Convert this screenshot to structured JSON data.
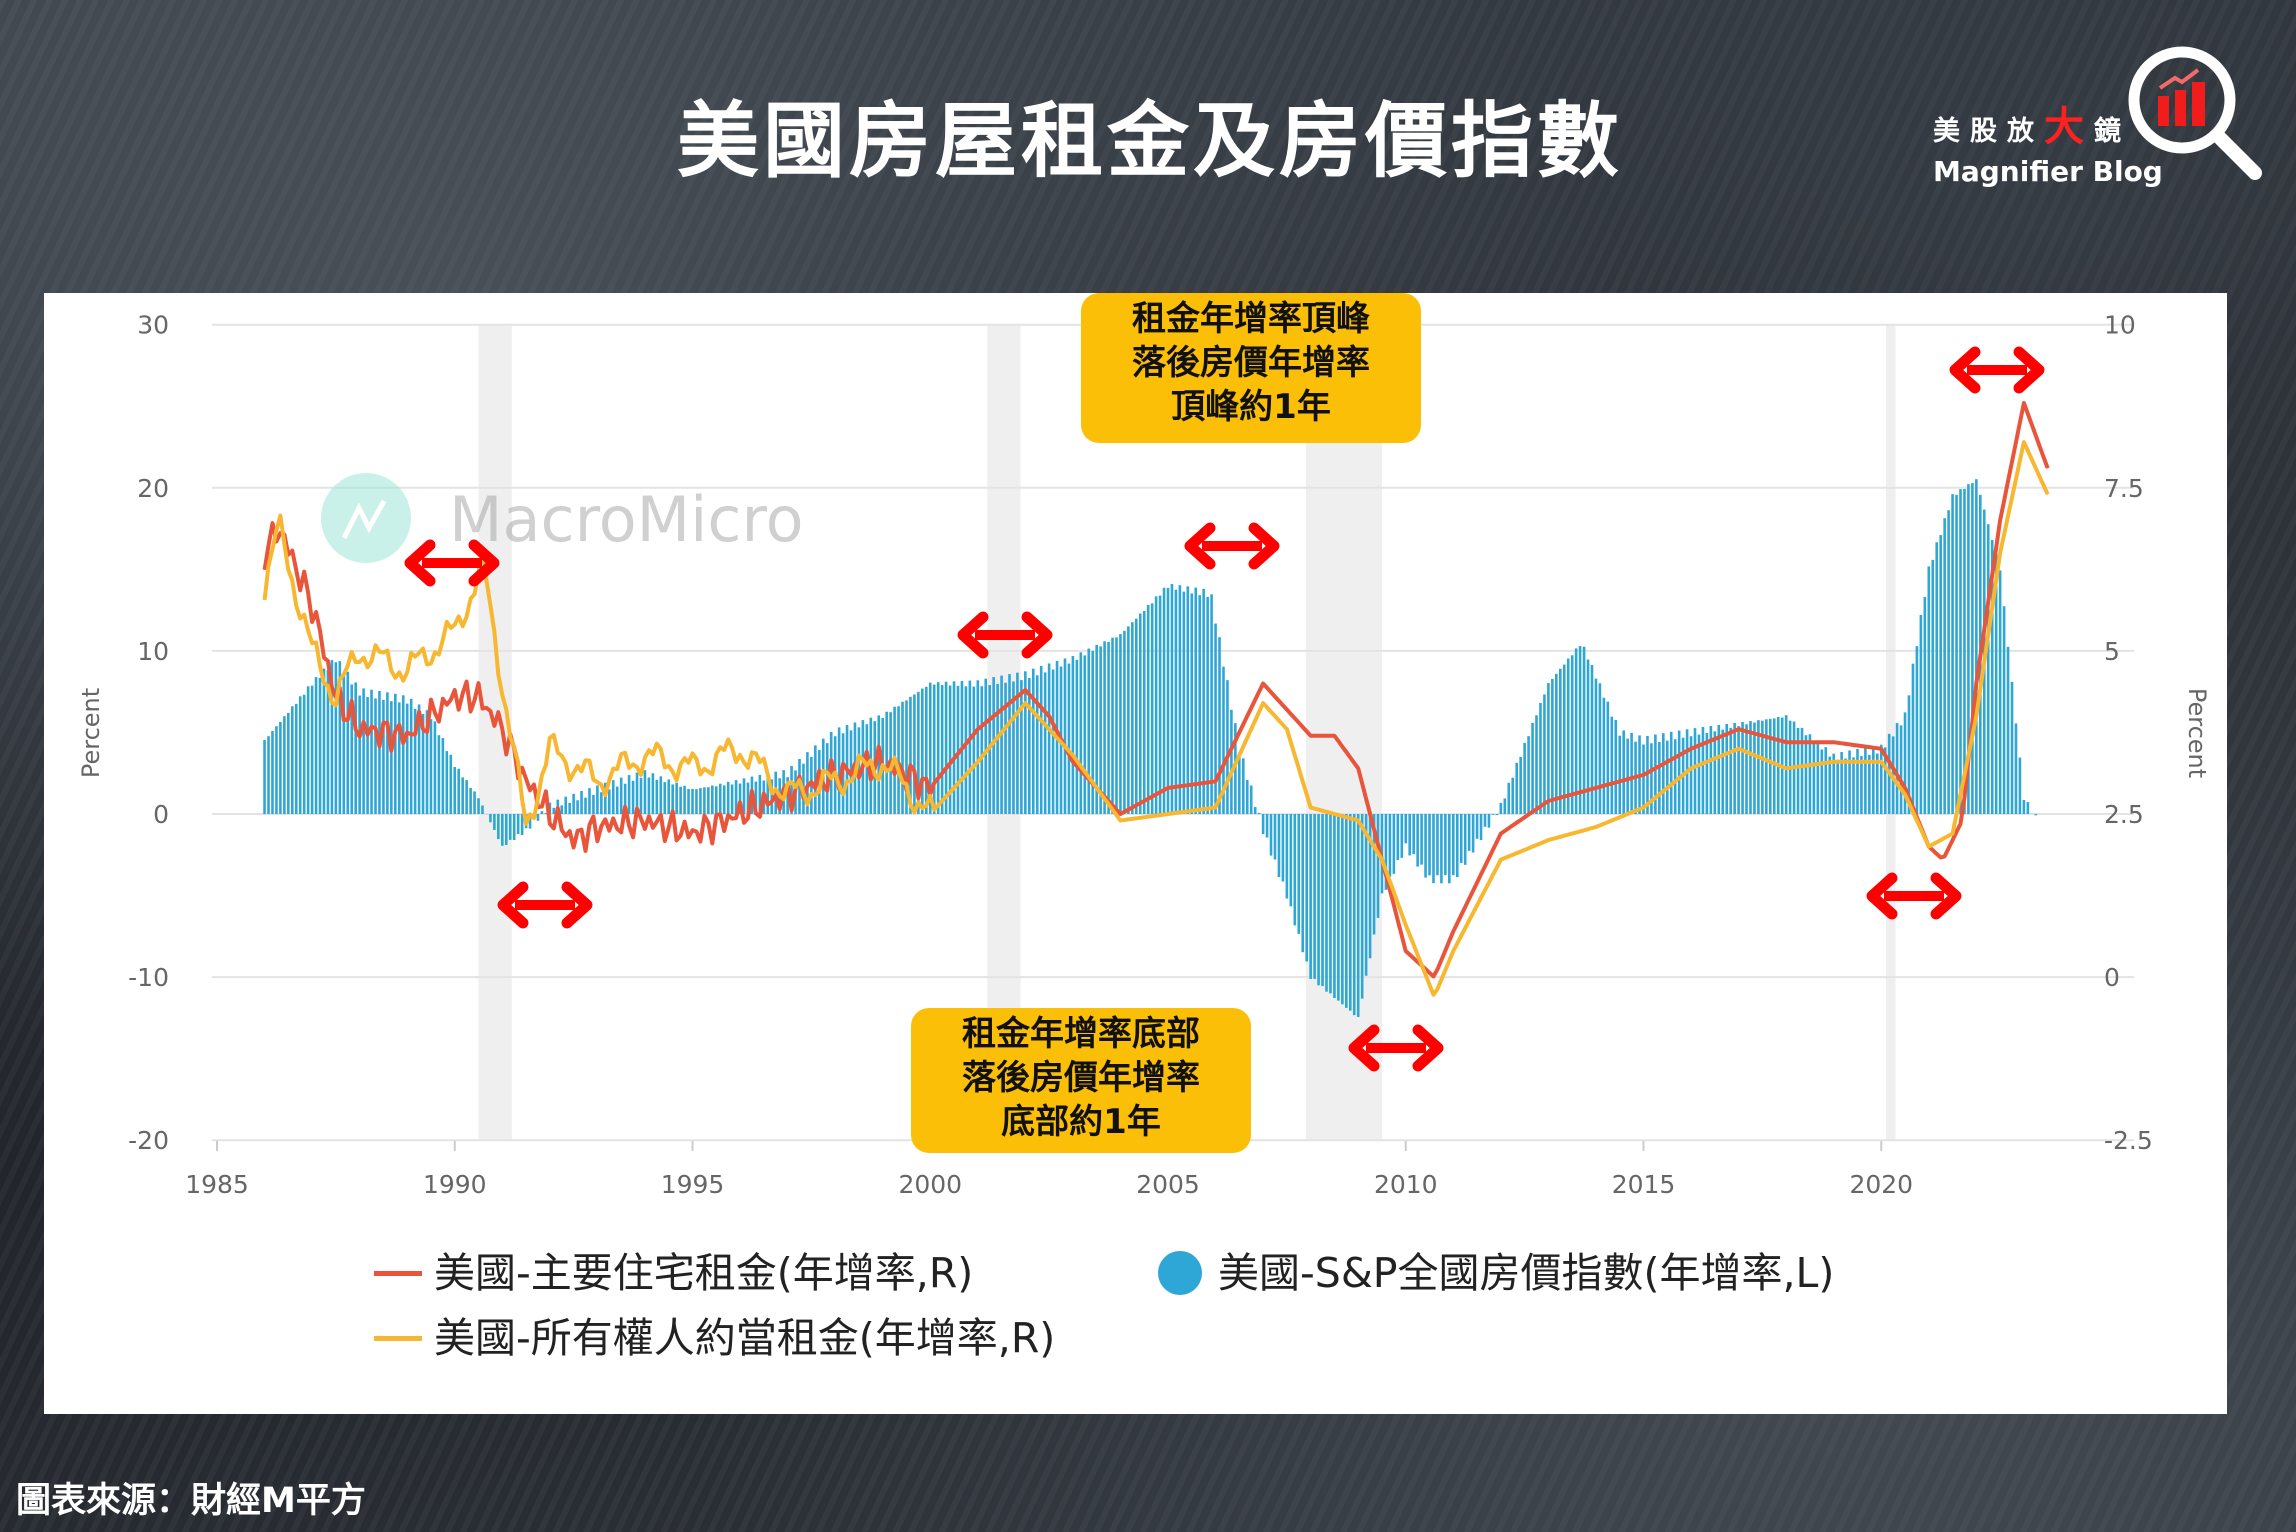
{
  "title": "美國房屋租金及房價指數",
  "logo": {
    "cn_parts": [
      "美股放",
      "大",
      "鏡"
    ],
    "en": "Magnifier Blog"
  },
  "watermark": "MacroMicro",
  "source": "圖表來源：財經M平方",
  "callouts": {
    "top": [
      "租金年增率頂峰",
      "落後房價年增率",
      "頂峰約1年"
    ],
    "bottom": [
      "租金年增率底部",
      "落後房價年增率",
      "底部約1年"
    ]
  },
  "colors": {
    "rent": "#e8553a",
    "oer": "#f7b731",
    "hpi": "#2ea6d6",
    "arrow": "#ff0000",
    "callout": "#fcbf07",
    "recession": "#efefef"
  },
  "chart_data": {
    "type": "bar+line",
    "xlabel": "",
    "ylabel_left": "Percent",
    "ylabel_right": "Percent",
    "x_ticks": [
      "1985",
      "1990",
      "1995",
      "2000",
      "2005",
      "2010",
      "2015",
      "2020"
    ],
    "xlim": [
      1985,
      2024
    ],
    "ylim_left": [
      -20,
      30
    ],
    "ylim_right": [
      -2.5,
      10
    ],
    "y_ticks_left": [
      "30",
      "20",
      "10",
      "0",
      "-10",
      "-20"
    ],
    "y_ticks_right": [
      "10",
      "7.5",
      "5",
      "2.5",
      "0",
      "-2.5"
    ],
    "grid": true,
    "legend_position": "bottom",
    "recessions": [
      [
        1990.5,
        1991.2
      ],
      [
        2001.2,
        2001.9
      ],
      [
        2007.9,
        2009.5
      ],
      [
        2020.1,
        2020.3
      ]
    ],
    "series": [
      {
        "name": "美國-主要住宅租金(年增率,R)",
        "type": "line",
        "axis": "right",
        "points": [
          [
            1986,
            6.5
          ],
          [
            1986.3,
            6.9
          ],
          [
            1987,
            5.7
          ],
          [
            1987.5,
            4.3
          ],
          [
            1988,
            3.8
          ],
          [
            1989,
            3.7
          ],
          [
            1990,
            4.3
          ],
          [
            1990.5,
            4.3
          ],
          [
            1991,
            3.8
          ],
          [
            1991.5,
            3.0
          ],
          [
            1992,
            2.5
          ],
          [
            1992.5,
            2.1
          ],
          [
            1993,
            2.3
          ],
          [
            1994,
            2.4
          ],
          [
            1995,
            2.2
          ],
          [
            1996,
            2.5
          ],
          [
            1997,
            2.8
          ],
          [
            1998,
            3.1
          ],
          [
            1999,
            3.3
          ],
          [
            2000,
            2.9
          ],
          [
            2001,
            3.8
          ],
          [
            2002,
            4.4
          ],
          [
            2002.5,
            4.0
          ],
          [
            2003,
            3.3
          ],
          [
            2004,
            2.5
          ],
          [
            2005,
            2.9
          ],
          [
            2006,
            3.0
          ],
          [
            2007,
            4.5
          ],
          [
            2008,
            3.7
          ],
          [
            2008.5,
            3.7
          ],
          [
            2009,
            3.2
          ],
          [
            2009.5,
            1.8
          ],
          [
            2010,
            0.4
          ],
          [
            2010.6,
            0.0
          ],
          [
            2011,
            0.7
          ],
          [
            2012,
            2.2
          ],
          [
            2013,
            2.7
          ],
          [
            2014,
            2.9
          ],
          [
            2015,
            3.1
          ],
          [
            2016,
            3.5
          ],
          [
            2017,
            3.8
          ],
          [
            2018,
            3.6
          ],
          [
            2019,
            3.6
          ],
          [
            2020,
            3.5
          ],
          [
            2020.5,
            2.9
          ],
          [
            2021,
            2.0
          ],
          [
            2021.3,
            1.8
          ],
          [
            2021.7,
            2.4
          ],
          [
            2022,
            4.5
          ],
          [
            2022.5,
            7.0
          ],
          [
            2023,
            8.8
          ],
          [
            2023.5,
            7.8
          ]
        ]
      },
      {
        "name": "美國-所有權人約當租金(年增率,R)",
        "type": "line",
        "axis": "right",
        "points": [
          [
            1986,
            6.0
          ],
          [
            1986.3,
            6.9
          ],
          [
            1987,
            5.0
          ],
          [
            1987.5,
            4.3
          ],
          [
            1988,
            5.0
          ],
          [
            1989,
            4.7
          ],
          [
            1990,
            5.3
          ],
          [
            1990.6,
            6.3
          ],
          [
            1991,
            4.5
          ],
          [
            1991.5,
            2.3
          ],
          [
            1992,
            3.5
          ],
          [
            1993,
            3.0
          ],
          [
            1994,
            3.4
          ],
          [
            1995,
            3.2
          ],
          [
            1996,
            3.5
          ],
          [
            1997,
            2.8
          ],
          [
            1998,
            3.0
          ],
          [
            1999,
            3.3
          ],
          [
            2000,
            2.5
          ],
          [
            2001,
            3.3
          ],
          [
            2002,
            4.2
          ],
          [
            2003,
            3.4
          ],
          [
            2004,
            2.4
          ],
          [
            2005,
            2.5
          ],
          [
            2006,
            2.6
          ],
          [
            2007,
            4.2
          ],
          [
            2007.5,
            3.8
          ],
          [
            2008,
            2.6
          ],
          [
            2009,
            2.4
          ],
          [
            2009.5,
            1.8
          ],
          [
            2010,
            0.8
          ],
          [
            2010.6,
            -0.3
          ],
          [
            2011,
            0.4
          ],
          [
            2012,
            1.8
          ],
          [
            2013,
            2.1
          ],
          [
            2014,
            2.3
          ],
          [
            2015,
            2.6
          ],
          [
            2016,
            3.2
          ],
          [
            2017,
            3.5
          ],
          [
            2018,
            3.2
          ],
          [
            2019,
            3.3
          ],
          [
            2020,
            3.3
          ],
          [
            2020.5,
            2.8
          ],
          [
            2021,
            2.0
          ],
          [
            2021.5,
            2.2
          ],
          [
            2022,
            4.0
          ],
          [
            2022.5,
            6.5
          ],
          [
            2023,
            8.2
          ],
          [
            2023.5,
            7.4
          ]
        ]
      },
      {
        "name": "美國-S&P全國房價指數(年增率,L)",
        "type": "bar",
        "axis": "left",
        "points": [
          [
            1986,
            4.5
          ],
          [
            1987,
            8
          ],
          [
            1987.5,
            9.5
          ],
          [
            1988,
            7.5
          ],
          [
            1989,
            7
          ],
          [
            1989.5,
            6
          ],
          [
            1990,
            3
          ],
          [
            1990.5,
            1
          ],
          [
            1991,
            -2
          ],
          [
            1991.5,
            -1
          ],
          [
            1992,
            0.5
          ],
          [
            1993,
            1.5
          ],
          [
            1994,
            2.5
          ],
          [
            1995,
            1.5
          ],
          [
            1996,
            2
          ],
          [
            1997,
            2.5
          ],
          [
            1998,
            5
          ],
          [
            1999,
            6
          ],
          [
            2000,
            8
          ],
          [
            2001,
            8
          ],
          [
            2002,
            8.5
          ],
          [
            2003,
            9.5
          ],
          [
            2004,
            11
          ],
          [
            2005,
            14
          ],
          [
            2005.9,
            13.5
          ],
          [
            2006.5,
            4
          ],
          [
            2007,
            -1
          ],
          [
            2007.5,
            -5
          ],
          [
            2008,
            -10
          ],
          [
            2009,
            -12.5
          ],
          [
            2009.5,
            -5
          ],
          [
            2010,
            -2
          ],
          [
            2010.5,
            -4
          ],
          [
            2011,
            -4
          ],
          [
            2012,
            0.5
          ],
          [
            2013,
            8
          ],
          [
            2013.7,
            10.5
          ],
          [
            2014.5,
            5
          ],
          [
            2015,
            4.5
          ],
          [
            2016,
            5
          ],
          [
            2017,
            5.5
          ],
          [
            2018,
            6
          ],
          [
            2019,
            3.5
          ],
          [
            2020,
            4
          ],
          [
            2020.5,
            6
          ],
          [
            2021,
            15
          ],
          [
            2021.5,
            19.5
          ],
          [
            2022,
            20.5
          ],
          [
            2022.5,
            15
          ],
          [
            2023,
            1
          ],
          [
            2023.3,
            -0.5
          ]
        ]
      }
    ]
  }
}
